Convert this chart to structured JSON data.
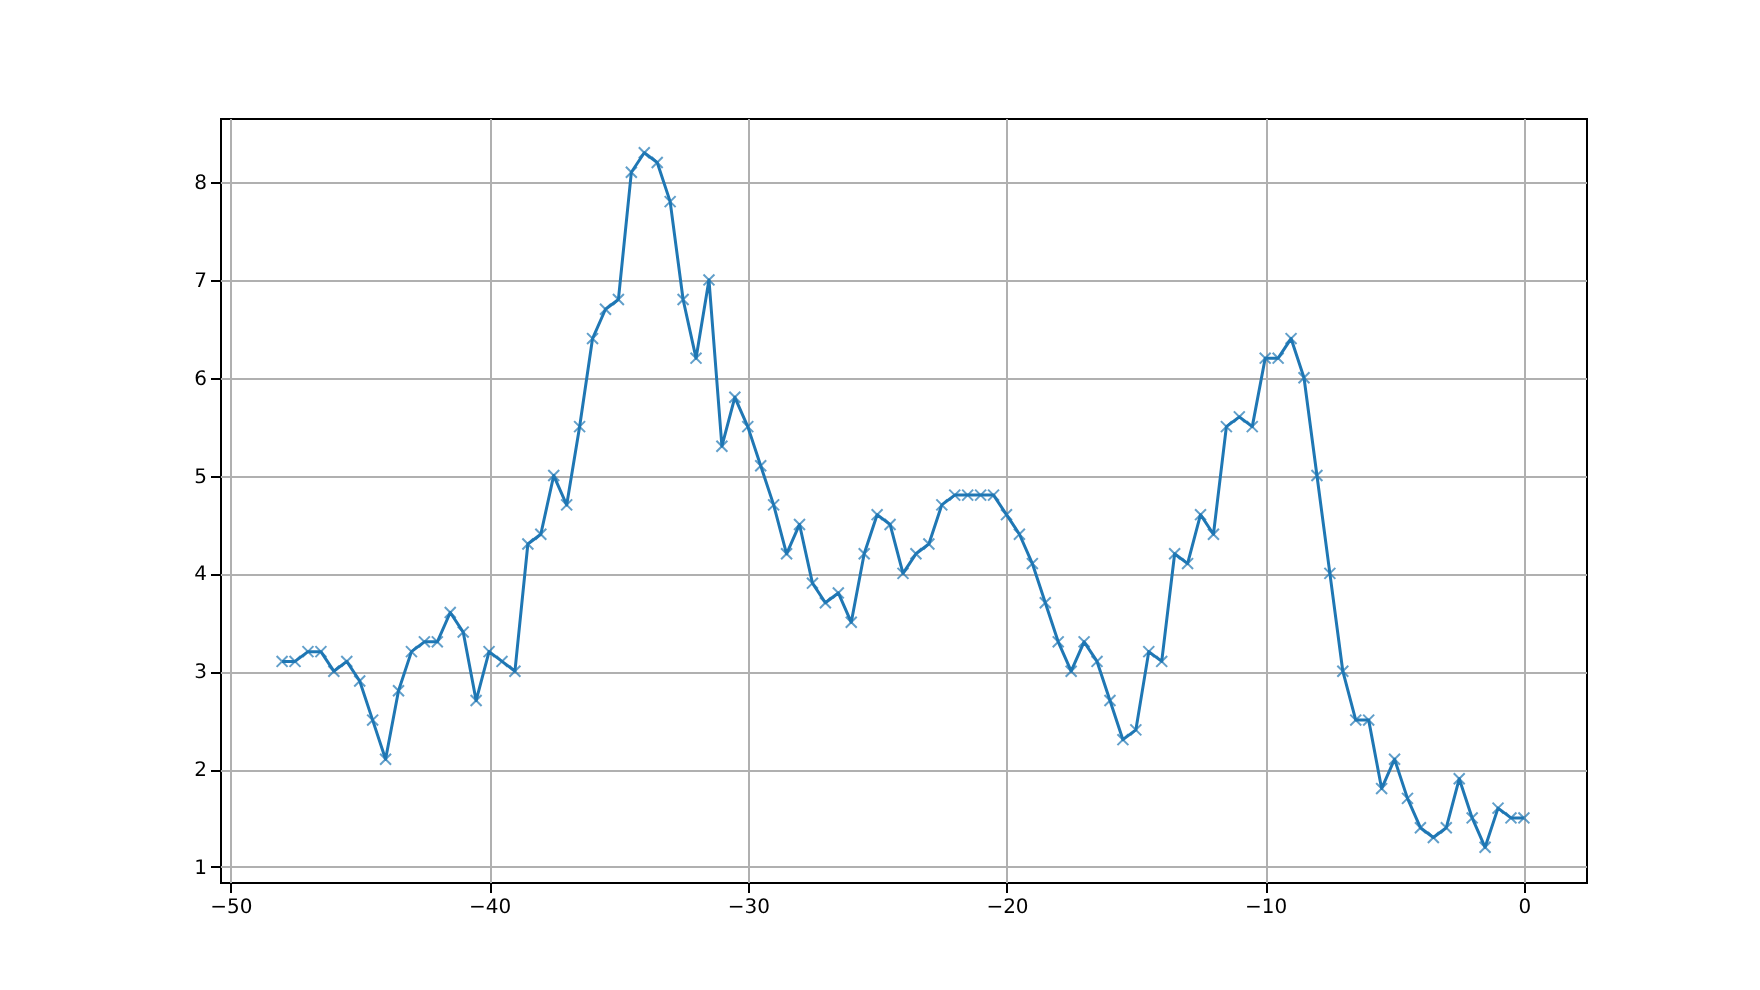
{
  "chart_data": {
    "type": "line",
    "x": [
      -48,
      -47.5,
      -47,
      -46.5,
      -46,
      -45.5,
      -45,
      -44.5,
      -44,
      -43.5,
      -43,
      -42.5,
      -42,
      -41.5,
      -41,
      -40.5,
      -40,
      -39.5,
      -39,
      -38.5,
      -38,
      -37.5,
      -37,
      -36.5,
      -36,
      -35.5,
      -35,
      -34.5,
      -34,
      -33.5,
      -33,
      -32.5,
      -32,
      -31.5,
      -31,
      -30.5,
      -30,
      -29.5,
      -29,
      -28.5,
      -28,
      -27.5,
      -27,
      -26.5,
      -26,
      -25.5,
      -25,
      -24.5,
      -24,
      -23.5,
      -23,
      -22.5,
      -22,
      -21.5,
      -21,
      -20.5,
      -20,
      -19.5,
      -19,
      -18.5,
      -18,
      -17.5,
      -17,
      -16.5,
      -16,
      -15.5,
      -15,
      -14.5,
      -14,
      -13.5,
      -13,
      -12.5,
      -12,
      -11.5,
      -11,
      -10.5,
      -10,
      -9.5,
      -9,
      -8.5,
      -8,
      -7.5,
      -7,
      -6.5,
      -6,
      -5.5,
      -5,
      -4.5,
      -4,
      -3.5,
      -3,
      -2.5,
      -2,
      -1.5,
      -1,
      -0.5,
      0
    ],
    "series": [
      {
        "color": "#1f77b4",
        "values": [
          3.1,
          3.1,
          3.2,
          3.2,
          3.0,
          3.1,
          2.9,
          2.5,
          2.1,
          2.8,
          3.2,
          3.3,
          3.3,
          3.6,
          3.4,
          2.7,
          3.2,
          3.1,
          3.0,
          4.3,
          4.4,
          5.0,
          4.7,
          5.5,
          6.4,
          6.7,
          6.8,
          8.1,
          8.3,
          8.2,
          7.8,
          6.8,
          6.2,
          7.0,
          5.3,
          5.8,
          5.5,
          5.1,
          4.7,
          4.2,
          4.5,
          3.9,
          3.7,
          3.8,
          3.5,
          4.2,
          4.6,
          4.5,
          4.0,
          4.2,
          4.3,
          4.7,
          4.8,
          4.8,
          4.8,
          4.8,
          4.6,
          4.4,
          4.1,
          3.7,
          3.3,
          3.0,
          3.3,
          3.1,
          2.7,
          2.3,
          2.4,
          3.2,
          3.1,
          4.2,
          4.1,
          4.6,
          4.4,
          5.5,
          5.6,
          5.5,
          6.2,
          6.2,
          6.4,
          6.0,
          5.0,
          4.0,
          3.0,
          2.5,
          2.5,
          1.8,
          2.1,
          1.7,
          1.4,
          1.3,
          1.4,
          1.9,
          1.5,
          1.2,
          1.6,
          1.5,
          1.5
        ]
      }
    ],
    "xlim": [
      -50.4,
      2.4
    ],
    "ylim": [
      0.845,
      8.655
    ],
    "xticks": [
      -50,
      -40,
      -30,
      -20,
      -10,
      0
    ],
    "yticks": [
      1,
      2,
      3,
      4,
      5,
      6,
      7,
      8
    ],
    "grid": true,
    "marker": "cross",
    "line_style": "solid",
    "legend": false
  }
}
